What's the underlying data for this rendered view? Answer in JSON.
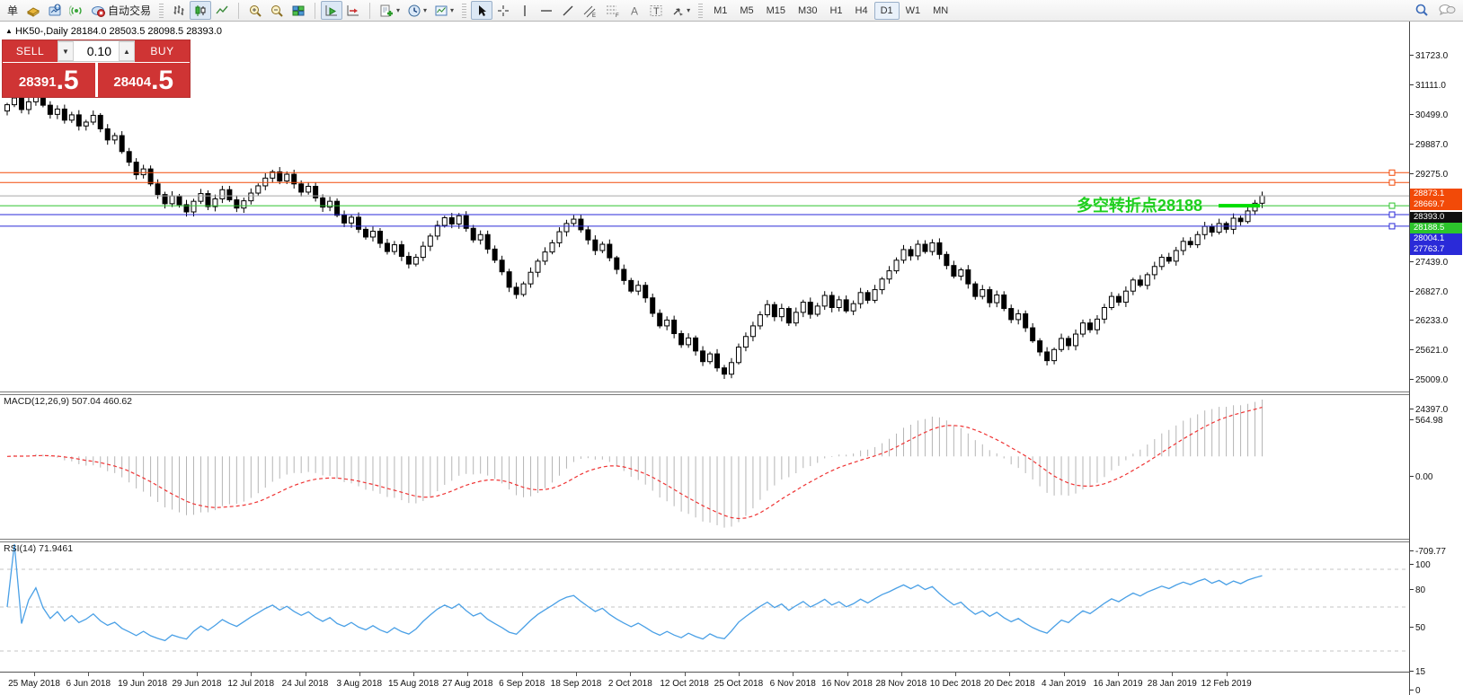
{
  "toolbar": {
    "new_order_label": "单",
    "autotrading_label": "自动交易",
    "icons": [
      "new-order",
      "market-watch",
      "publish-chart",
      "signals",
      "autotrading",
      "bar-chart",
      "candlestick-chart",
      "line-chart",
      "zoom-in",
      "zoom-out",
      "tile-windows",
      "auto-scroll",
      "chart-shift",
      "indicators-add",
      "periods",
      "templates",
      "cursor",
      "crosshair",
      "vertical-line",
      "horizontal-line",
      "trendline",
      "equidistant-channel",
      "fibonacci",
      "text",
      "text-label",
      "arrows",
      "search",
      "chat"
    ],
    "timeframes": [
      "M1",
      "M5",
      "M15",
      "M30",
      "H1",
      "H4",
      "D1",
      "W1",
      "MN"
    ],
    "active_timeframe": "D1"
  },
  "chart_header": {
    "symbol_line": "HK50-,Daily",
    "ohlc_line": "28184.0 28503.5 28098.5 28393.0"
  },
  "trade_panel": {
    "sell_label": "SELL",
    "buy_label": "BUY",
    "volume": "0.10",
    "sell_price_main": "28391",
    "sell_price_big": ".5",
    "buy_price_main": "28404",
    "buy_price_big": ".5"
  },
  "annotation": {
    "text": "多空转折点28188",
    "color": "#1ecf1e"
  },
  "chart_data": {
    "type": "candlestick",
    "symbol": "HK50",
    "timeframe": "Daily",
    "ohlc_display": {
      "open": "28184.0",
      "high": "28503.5",
      "low": "28098.5",
      "close": "28393.0"
    },
    "ylim": [
      24341,
      31965
    ],
    "price_axis_ticks": [
      31723.0,
      31111.0,
      30499.0,
      29887.0,
      29275.0,
      27439.0,
      26827.0,
      26233.0,
      25621.0,
      25009.0,
      24397.0
    ],
    "levels": [
      {
        "price": 28873.1,
        "label": "28873.1",
        "color": "#f24a08",
        "tag_bg": "#f24a08",
        "handle": true
      },
      {
        "price": 28669.7,
        "label": "28669.7",
        "color": "#f24a08",
        "tag_bg": "#f24a08",
        "handle": true
      },
      {
        "price": 28393.0,
        "label": "28393.0",
        "color": "#a8a8a8",
        "tag_bg": "#101010",
        "handle": false
      },
      {
        "price": 28188.5,
        "label": "28188.5",
        "color": "#2cc42c",
        "tag_bg": "#2cc42c",
        "handle": true
      },
      {
        "price": 28004.1,
        "label": "28004.1",
        "color": "#2a2ad8",
        "tag_bg": "#2a2ad8",
        "handle": true
      },
      {
        "price": 27763.7,
        "label": "27763.7",
        "color": "#2a2ad8",
        "tag_bg": "#2a2ad8",
        "handle": true
      }
    ],
    "date_labels": [
      "25 May 2018",
      "6 Jun 2018",
      "19 Jun 2018",
      "29 Jun 2018",
      "12 Jul 2018",
      "24 Jul 2018",
      "3 Aug 2018",
      "15 Aug 2018",
      "27 Aug 2018",
      "6 Sep 2018",
      "18 Sep 2018",
      "2 Oct 2018",
      "12 Oct 2018",
      "25 Oct 2018",
      "6 Nov 2018",
      "16 Nov 2018",
      "28 Nov 2018",
      "10 Dec 2018",
      "20 Dec 2018",
      "4 Jan 2019",
      "16 Jan 2019",
      "28 Jan 2019",
      "12 Feb 2019"
    ],
    "closes": [
      30280,
      30420,
      30180,
      30340,
      30490,
      30270,
      30080,
      30190,
      29960,
      30070,
      29840,
      29920,
      30060,
      29780,
      29550,
      29640,
      29310,
      29090,
      28830,
      28950,
      28640,
      28420,
      28230,
      28390,
      28210,
      28060,
      28280,
      28440,
      28170,
      28330,
      28520,
      28310,
      28140,
      28290,
      28450,
      28600,
      28760,
      28890,
      28700,
      28840,
      28640,
      28470,
      28590,
      28350,
      28160,
      28280,
      27990,
      27830,
      27950,
      27700,
      27540,
      27660,
      27410,
      27240,
      27380,
      27140,
      26980,
      27120,
      27350,
      27560,
      27780,
      27940,
      27810,
      27980,
      27720,
      27480,
      27590,
      27290,
      27060,
      26820,
      26500,
      26350,
      26570,
      26810,
      27040,
      27230,
      27420,
      27650,
      27820,
      27910,
      27690,
      27480,
      27260,
      27390,
      27110,
      26870,
      26640,
      26420,
      26540,
      26280,
      25960,
      25700,
      25820,
      25540,
      25310,
      25450,
      25180,
      24960,
      25120,
      24830,
      24700,
      24940,
      25260,
      25480,
      25700,
      25930,
      26140,
      25890,
      26060,
      25760,
      25980,
      26190,
      25940,
      26110,
      26330,
      26080,
      26240,
      26010,
      26160,
      26390,
      26230,
      26450,
      26670,
      26840,
      27060,
      27280,
      27150,
      27390,
      27240,
      27420,
      27180,
      26950,
      26730,
      26860,
      26570,
      26310,
      26450,
      26180,
      26340,
      26060,
      25830,
      25950,
      25660,
      25390,
      25160,
      24980,
      25210,
      25440,
      25290,
      25530,
      25760,
      25620,
      25840,
      26080,
      26310,
      26190,
      26420,
      26650,
      26540,
      26760,
      26930,
      27120,
      27040,
      27260,
      27450,
      27380,
      27590,
      27760,
      27640,
      27820,
      27700,
      27930,
      27860,
      28080,
      28240,
      28393
    ],
    "first_open": 30150,
    "macd": {
      "label": "MACD(12,26,9)",
      "values_text": "507.04 460.62",
      "params": [
        12,
        26,
        9
      ],
      "axis_labels": [
        "564.98",
        "0.00",
        "-709.77"
      ]
    },
    "rsi": {
      "label": "RSI(14)",
      "value_text": "71.9461",
      "period": 14,
      "levels": [
        80,
        50,
        15
      ],
      "axis_ticks": [
        100,
        80,
        50,
        15,
        0
      ]
    }
  }
}
